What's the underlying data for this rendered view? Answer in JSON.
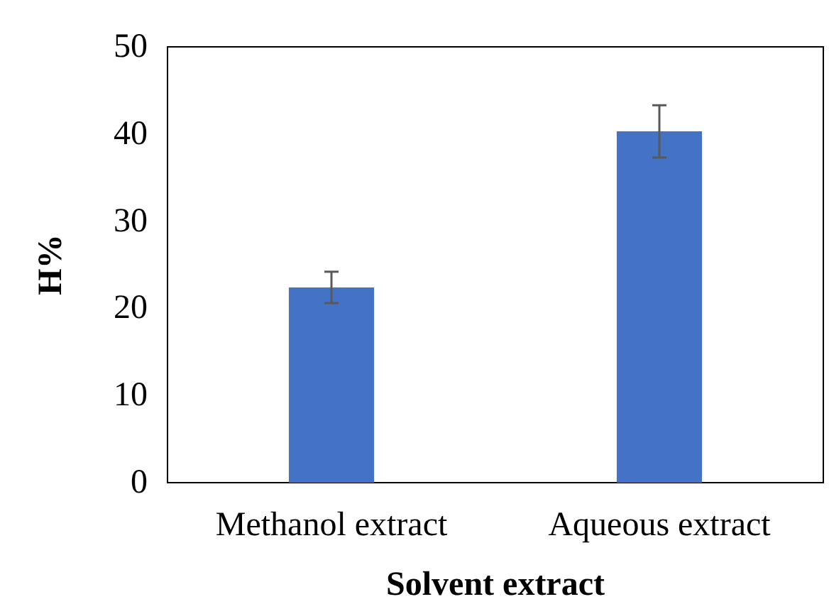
{
  "chart_data": {
    "type": "bar",
    "xlabel": "Solvent extract",
    "ylabel": "H%",
    "categories": [
      "Methanol extract",
      "Aqueous extract"
    ],
    "values": [
      22.4,
      40.3
    ],
    "errors": [
      1.8,
      3.0
    ],
    "color": "#4472c4",
    "ylim": [
      0,
      50
    ],
    "yticks": [
      0,
      10,
      20,
      30,
      40,
      50
    ],
    "grid": false
  }
}
